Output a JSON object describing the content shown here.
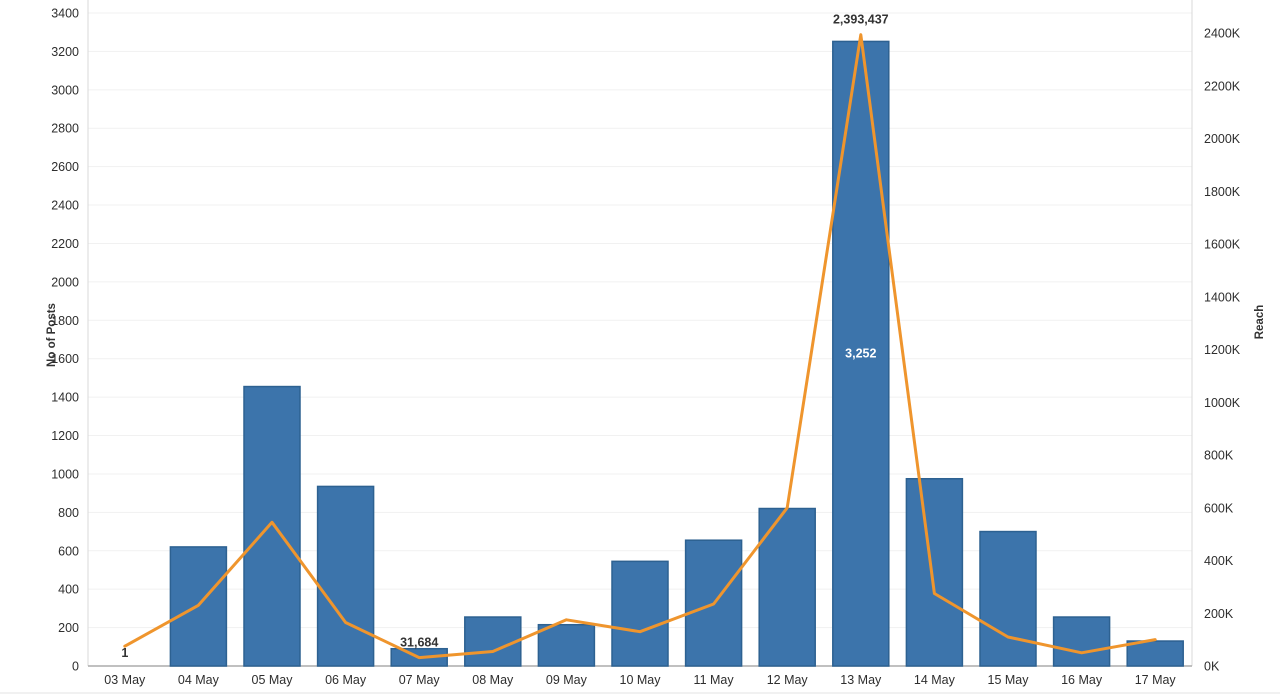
{
  "chart_data": {
    "type": "combo",
    "title": "",
    "categories": [
      "03 May",
      "04 May",
      "05 May",
      "06 May",
      "07 May",
      "08 May",
      "09 May",
      "10 May",
      "11 May",
      "12 May",
      "13 May",
      "14 May",
      "15 May",
      "16 May",
      "17 May"
    ],
    "series": [
      {
        "name": "No of Posts",
        "type": "bar",
        "axis": "left",
        "color": "#3C74AB",
        "border_color": "#2D6191",
        "values": [
          1,
          620,
          1455,
          935,
          90,
          255,
          215,
          545,
          655,
          820,
          3252,
          975,
          700,
          255,
          130
        ]
      },
      {
        "name": "Reach",
        "type": "line",
        "axis": "right",
        "color": "#EF952D",
        "values": [
          75000,
          230000,
          545000,
          165000,
          31684,
          55000,
          175000,
          130000,
          235000,
          600000,
          2393437,
          275000,
          110000,
          50000,
          100000
        ]
      }
    ],
    "point_labels": [
      {
        "series": "No of Posts",
        "category_index": 0,
        "text": "1",
        "color": "#333333",
        "position": "above-bar"
      },
      {
        "series": "No of Posts",
        "category_index": 10,
        "text": "3,252",
        "color": "#ffffff",
        "position": "inside-bar-center"
      },
      {
        "series": "Reach",
        "category_index": 4,
        "text": "31,684",
        "color": "#333333",
        "position": "above-point"
      },
      {
        "series": "Reach",
        "category_index": 10,
        "text": "2,393,437",
        "color": "#333333",
        "position": "above-point"
      }
    ],
    "axes": {
      "left": {
        "title": "No of Posts",
        "min": 0,
        "max": 3400,
        "step": 200,
        "format": "plain"
      },
      "right": {
        "title": "Reach",
        "min": 0,
        "max": 2400000,
        "step": 200000,
        "format": "K"
      }
    },
    "grid": true,
    "legend": "none",
    "colors": {
      "grid_line": "#F1F1F1",
      "pane_border": "#D9D9D9",
      "axis_line": "#ABABAB",
      "bottom_rule": "#E3E3E3",
      "background": "#FFFFFF"
    }
  }
}
